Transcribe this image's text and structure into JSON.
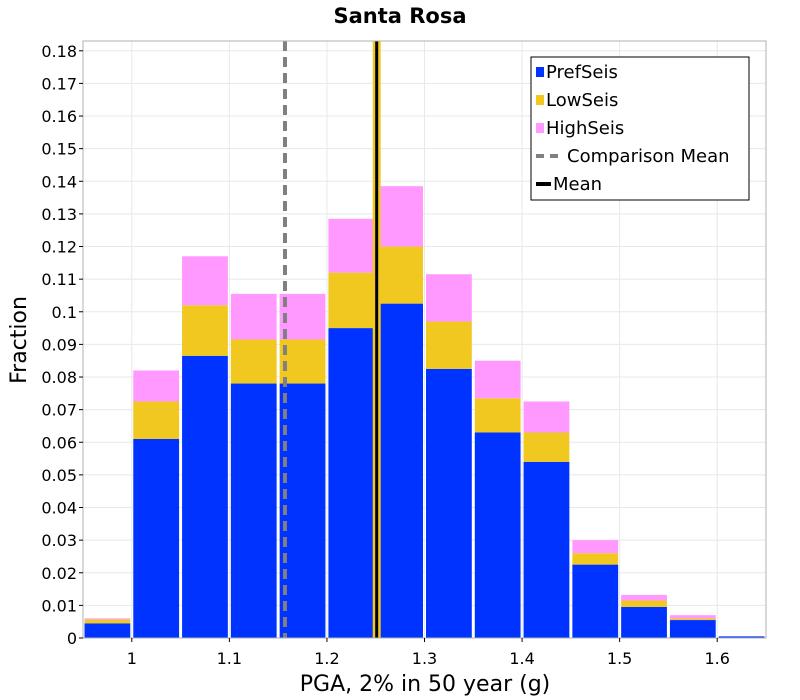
{
  "chart_data": {
    "type": "bar",
    "stacked": true,
    "title": "Santa Rosa",
    "xlabel": "PGA, 2% in 50 year (g)",
    "ylabel": "Fraction",
    "xlim": [
      0.95,
      1.65
    ],
    "ylim": [
      0,
      0.183
    ],
    "bin_width": 0.05,
    "xticks": [
      {
        "value": 1.0,
        "label": "1"
      },
      {
        "value": 1.1,
        "label": "1.1"
      },
      {
        "value": 1.2,
        "label": "1.2"
      },
      {
        "value": 1.3,
        "label": "1.3"
      },
      {
        "value": 1.4,
        "label": "1.4"
      },
      {
        "value": 1.5,
        "label": "1.5"
      },
      {
        "value": 1.6,
        "label": "1.6"
      }
    ],
    "yticks": [
      {
        "value": 0,
        "label": "0"
      },
      {
        "value": 0.01,
        "label": "0.01"
      },
      {
        "value": 0.02,
        "label": "0.02"
      },
      {
        "value": 0.03,
        "label": "0.03"
      },
      {
        "value": 0.04,
        "label": "0.04"
      },
      {
        "value": 0.05,
        "label": "0.05"
      },
      {
        "value": 0.06,
        "label": "0.06"
      },
      {
        "value": 0.07,
        "label": "0.07"
      },
      {
        "value": 0.08,
        "label": "0.08"
      },
      {
        "value": 0.09,
        "label": "0.09"
      },
      {
        "value": 0.1,
        "label": "0.1"
      },
      {
        "value": 0.11,
        "label": "0.11"
      },
      {
        "value": 0.12,
        "label": "0.12"
      },
      {
        "value": 0.13,
        "label": "0.13"
      },
      {
        "value": 0.14,
        "label": "0.14"
      },
      {
        "value": 0.15,
        "label": "0.15"
      },
      {
        "value": 0.16,
        "label": "0.16"
      },
      {
        "value": 0.17,
        "label": "0.17"
      },
      {
        "value": 0.18,
        "label": "0.18"
      }
    ],
    "x": [
      0.975,
      1.025,
      1.075,
      1.125,
      1.175,
      1.225,
      1.275,
      1.325,
      1.375,
      1.425,
      1.475,
      1.525,
      1.575,
      1.625
    ],
    "series": [
      {
        "name": "PrefSeis",
        "color": "#0033ff",
        "values": [
          0.0045,
          0.061,
          0.0865,
          0.078,
          0.078,
          0.095,
          0.1025,
          0.0825,
          0.063,
          0.054,
          0.0225,
          0.0095,
          0.0055,
          0.0005
        ]
      },
      {
        "name": "LowSeis",
        "color": "#f0c820",
        "values": [
          0.0012,
          0.0115,
          0.0155,
          0.0135,
          0.0135,
          0.017,
          0.0175,
          0.0145,
          0.0105,
          0.009,
          0.0035,
          0.002,
          0.0005,
          0.0
        ]
      },
      {
        "name": "HighSeis",
        "color": "#ff99ff",
        "values": [
          0.0003,
          0.0095,
          0.015,
          0.014,
          0.014,
          0.0165,
          0.0185,
          0.0145,
          0.0115,
          0.0095,
          0.004,
          0.0017,
          0.001,
          0.0
        ]
      }
    ],
    "lines": [
      {
        "name": "Comparison Mean",
        "x": 1.157,
        "color": "#808080",
        "style": "dashed"
      },
      {
        "name": "Mean",
        "x": 1.251,
        "color": "#000000",
        "style": "solid",
        "highlight": "#f0c820"
      }
    ],
    "legend": {
      "position": "top-right",
      "entries": [
        {
          "label": "PrefSeis",
          "kind": "box",
          "color": "#0033ff"
        },
        {
          "label": "LowSeis",
          "kind": "box",
          "color": "#f0c820"
        },
        {
          "label": "HighSeis",
          "kind": "box",
          "color": "#ff99ff"
        },
        {
          "label": "Comparison Mean",
          "kind": "dashed",
          "color": "#808080"
        },
        {
          "label": "Mean",
          "kind": "solid",
          "color": "#000000"
        }
      ]
    }
  }
}
